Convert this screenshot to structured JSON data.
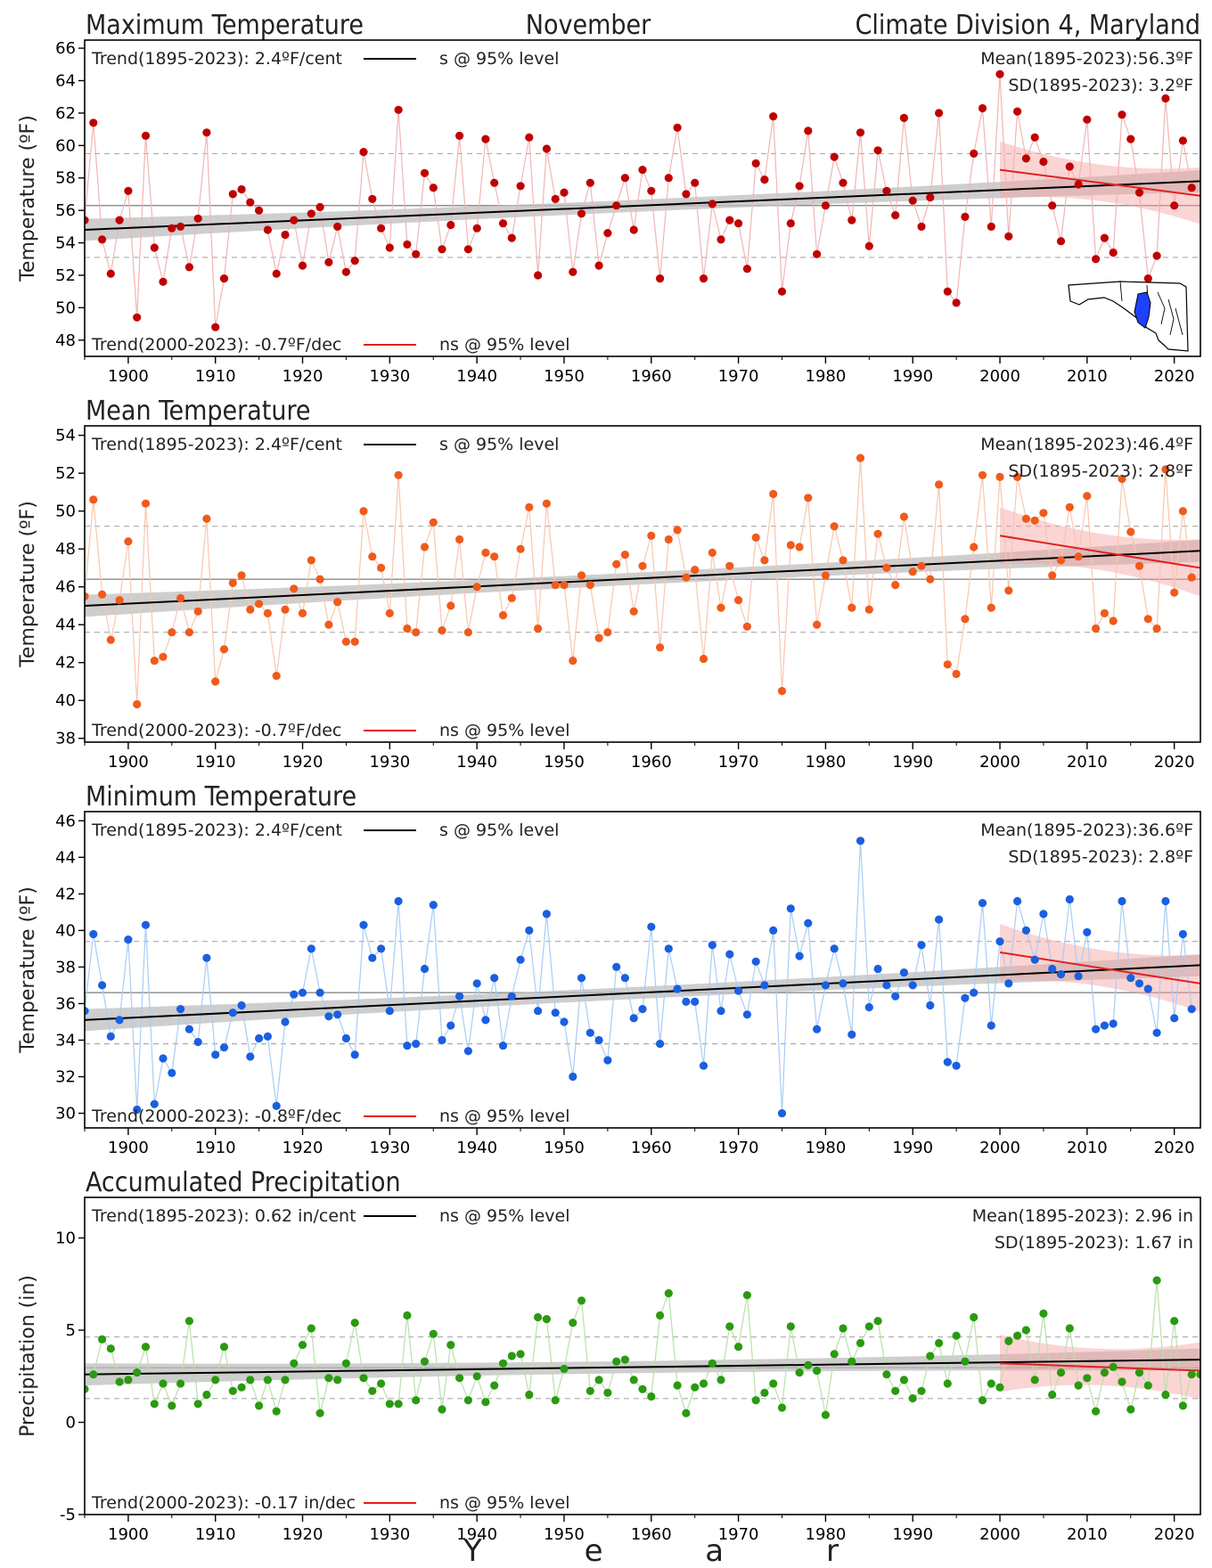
{
  "header": {
    "left_title": "Maximum Temperature",
    "center_title": "November",
    "right_title": "Climate Division 4, Maryland"
  },
  "x_axis_label": "Y e a r",
  "colors": {
    "max": "#c00000",
    "mean": "#f05a1a",
    "min": "#1a5fe0",
    "precip": "#2a9a10",
    "trend_long": "#000000",
    "trend_recent": "#e02020"
  },
  "map_icon": "maryland-division-map-icon",
  "chart_data": [
    {
      "id": "max",
      "type": "scatter",
      "title": "",
      "ylabel": "Temperature (ºF)",
      "xlim": [
        1895,
        2023
      ],
      "ylim": [
        47,
        66.5
      ],
      "yticks": [
        48,
        50,
        52,
        54,
        56,
        58,
        60,
        62,
        64,
        66
      ],
      "xticks": [
        1900,
        1910,
        1920,
        1930,
        1940,
        1950,
        1960,
        1970,
        1980,
        1990,
        2000,
        2010,
        2020
      ],
      "trend_long_label": "Trend(1895-2023):  2.4ºF/cent",
      "trend_long_sig": "s @ 95% level",
      "trend_recent_label": "Trend(2000-2023): -0.7ºF/dec",
      "trend_recent_sig": "ns @ 95% level",
      "mean_label": "Mean(1895-2023):56.3ºF",
      "sd_label": "SD(1895-2023): 3.2ºF",
      "mean": 56.3,
      "sd": 3.2,
      "trend_long": {
        "start": [
          1895,
          54.8
        ],
        "end": [
          2023,
          57.8
        ]
      },
      "trend_recent": {
        "start": [
          2000,
          58.5
        ],
        "end": [
          2023,
          56.9
        ]
      },
      "series": [
        {
          "x_start": 1895,
          "values": [
            55.4,
            61.4,
            54.2,
            52.1,
            55.4,
            57.2,
            49.4,
            60.6,
            53.7,
            51.6,
            54.9,
            55.0,
            52.5,
            55.5,
            60.8,
            48.8,
            51.8,
            57.0,
            57.3,
            56.5,
            56.0,
            54.8,
            52.1,
            54.5,
            55.4,
            52.6,
            55.8,
            56.2,
            52.8,
            55.0,
            52.2,
            52.9,
            59.6,
            56.7,
            54.9,
            53.7,
            62.2,
            53.9,
            53.3,
            58.3,
            57.4,
            53.6,
            55.1,
            60.6,
            53.6,
            54.9,
            60.4,
            57.7,
            55.2,
            54.3,
            57.5,
            60.5,
            52.0,
            59.8,
            56.7,
            57.1,
            52.2,
            55.8,
            57.7,
            52.6,
            54.6,
            56.3,
            58.0,
            54.8,
            58.5,
            57.2,
            51.8,
            58.0,
            61.1,
            57.0,
            57.7,
            51.8,
            56.4,
            54.2,
            55.4,
            55.2,
            52.4,
            58.9,
            57.9,
            61.8,
            51.0,
            55.2,
            57.5,
            60.9,
            53.3,
            56.3,
            59.3,
            57.7,
            55.4,
            60.8,
            53.8,
            59.7,
            57.2,
            55.7,
            61.7,
            56.6,
            55.0,
            56.8,
            62.0,
            51.0,
            50.3,
            55.6,
            59.5,
            62.3,
            55.0,
            64.4,
            54.4,
            62.1,
            59.2,
            60.5,
            59.0,
            56.3,
            54.1,
            58.7,
            57.6,
            61.6,
            53.0,
            54.3,
            53.4,
            61.9,
            60.4,
            57.1,
            51.8,
            53.2,
            62.9,
            56.3,
            60.3,
            57.4
          ]
        }
      ]
    },
    {
      "id": "mean",
      "type": "scatter",
      "title": "Mean Temperature",
      "ylabel": "Temperature (ºF)",
      "xlim": [
        1895,
        2023
      ],
      "ylim": [
        37.8,
        54.5
      ],
      "yticks": [
        38,
        40,
        42,
        44,
        46,
        48,
        50,
        52,
        54
      ],
      "xticks": [
        1900,
        1910,
        1920,
        1930,
        1940,
        1950,
        1960,
        1970,
        1980,
        1990,
        2000,
        2010,
        2020
      ],
      "trend_long_label": "Trend(1895-2023):  2.4ºF/cent",
      "trend_long_sig": "s @ 95% level",
      "trend_recent_label": "Trend(2000-2023): -0.7ºF/dec",
      "trend_recent_sig": "ns @ 95% level",
      "mean_label": "Mean(1895-2023):46.4ºF",
      "sd_label": "SD(1895-2023): 2.8ºF",
      "mean": 46.4,
      "sd": 2.8,
      "trend_long": {
        "start": [
          1895,
          45.0
        ],
        "end": [
          2023,
          47.9
        ]
      },
      "trend_recent": {
        "start": [
          2000,
          48.7
        ],
        "end": [
          2023,
          47.0
        ]
      },
      "series": [
        {
          "x_start": 1895,
          "values": [
            45.5,
            50.6,
            45.6,
            43.2,
            45.3,
            48.4,
            39.8,
            50.4,
            42.1,
            42.3,
            43.6,
            45.4,
            43.6,
            44.7,
            49.6,
            41.0,
            42.7,
            46.2,
            46.6,
            44.8,
            45.1,
            44.6,
            41.3,
            44.8,
            45.9,
            44.6,
            47.4,
            46.4,
            44.0,
            45.2,
            43.1,
            43.1,
            50.0,
            47.6,
            47.0,
            44.6,
            51.9,
            43.8,
            43.6,
            48.1,
            49.4,
            43.7,
            45.0,
            48.5,
            43.6,
            46.0,
            47.8,
            47.6,
            44.5,
            45.4,
            48.0,
            50.2,
            43.8,
            50.4,
            46.1,
            46.1,
            42.1,
            46.6,
            46.1,
            43.3,
            43.6,
            47.2,
            47.7,
            44.7,
            47.1,
            48.7,
            42.8,
            48.5,
            49.0,
            46.5,
            46.9,
            42.2,
            47.8,
            44.9,
            47.1,
            45.3,
            43.9,
            48.6,
            47.4,
            50.9,
            40.5,
            48.2,
            48.1,
            50.7,
            44.0,
            46.6,
            49.2,
            47.4,
            44.9,
            52.8,
            44.8,
            48.8,
            47.0,
            46.1,
            49.7,
            46.8,
            47.1,
            46.4,
            51.4,
            41.9,
            41.4,
            44.3,
            48.1,
            51.9,
            44.9,
            51.8,
            45.8,
            51.8,
            49.6,
            49.5,
            49.9,
            46.6,
            47.4,
            50.2,
            47.6,
            50.8,
            43.8,
            44.6,
            44.2,
            51.7,
            48.9,
            47.1,
            44.3,
            43.8,
            52.2,
            45.7,
            50.0,
            46.5
          ]
        }
      ]
    },
    {
      "id": "min",
      "type": "scatter",
      "title": "Minimum Temperature",
      "ylabel": "Temperature (ºF)",
      "xlim": [
        1895,
        2023
      ],
      "ylim": [
        29.2,
        46.5
      ],
      "yticks": [
        30,
        32,
        34,
        36,
        38,
        40,
        42,
        44,
        46
      ],
      "xticks": [
        1900,
        1910,
        1920,
        1930,
        1940,
        1950,
        1960,
        1970,
        1980,
        1990,
        2000,
        2010,
        2020
      ],
      "trend_long_label": "Trend(1895-2023):  2.4ºF/cent",
      "trend_long_sig": "s @ 95% level",
      "trend_recent_label": "Trend(2000-2023): -0.8ºF/dec",
      "trend_recent_sig": "ns @ 95% level",
      "mean_label": "Mean(1895-2023):36.6ºF",
      "sd_label": "SD(1895-2023): 2.8ºF",
      "mean": 36.6,
      "sd": 2.8,
      "trend_long": {
        "start": [
          1895,
          35.1
        ],
        "end": [
          2023,
          38.1
        ]
      },
      "trend_recent": {
        "start": [
          2000,
          38.8
        ],
        "end": [
          2023,
          37.1
        ]
      },
      "series": [
        {
          "x_start": 1895,
          "values": [
            35.6,
            39.8,
            37.0,
            34.2,
            35.1,
            39.5,
            30.2,
            40.3,
            30.5,
            33.0,
            32.2,
            35.7,
            34.6,
            33.9,
            38.5,
            33.2,
            33.6,
            35.5,
            35.9,
            33.1,
            34.1,
            34.2,
            30.4,
            35.0,
            36.5,
            36.6,
            39.0,
            36.6,
            35.3,
            35.4,
            34.1,
            33.2,
            40.3,
            38.5,
            39.0,
            35.6,
            41.6,
            33.7,
            33.8,
            37.9,
            41.4,
            34.0,
            34.8,
            36.4,
            33.4,
            37.1,
            35.1,
            37.4,
            33.7,
            36.4,
            38.4,
            40.0,
            35.6,
            40.9,
            35.5,
            35.0,
            32.0,
            37.4,
            34.4,
            34.0,
            32.9,
            38.0,
            37.4,
            35.2,
            35.7,
            40.2,
            33.8,
            39.0,
            36.8,
            36.1,
            36.1,
            32.6,
            39.2,
            35.6,
            38.7,
            36.7,
            35.4,
            38.3,
            37.0,
            40.0,
            30.0,
            41.2,
            38.6,
            40.4,
            34.6,
            37.0,
            39.0,
            37.1,
            34.3,
            44.9,
            35.8,
            37.9,
            37.0,
            36.4,
            37.7,
            37.0,
            39.2,
            35.9,
            40.6,
            32.8,
            32.6,
            36.3,
            36.6,
            41.5,
            34.8,
            39.4,
            37.1,
            41.6,
            40.0,
            38.4,
            40.9,
            37.9,
            37.6,
            41.7,
            37.5,
            39.9,
            34.6,
            34.8,
            34.9,
            41.6,
            37.4,
            37.1,
            36.8,
            34.4,
            41.6,
            35.2,
            39.8,
            35.7
          ]
        }
      ]
    },
    {
      "id": "precip",
      "type": "scatter",
      "title": "Accumulated Precipitation",
      "ylabel": "Precipitation (in)",
      "xlim": [
        1895,
        2023
      ],
      "ylim": [
        -5,
        12.2
      ],
      "yticks": [
        -5,
        0,
        5,
        10
      ],
      "xticks": [
        1900,
        1910,
        1920,
        1930,
        1940,
        1950,
        1960,
        1970,
        1980,
        1990,
        2000,
        2010,
        2020
      ],
      "trend_long_label": "Trend(1895-2023):  0.62 in/cent",
      "trend_long_sig": "ns @ 95% level",
      "trend_recent_label": "Trend(2000-2023): -0.17 in/dec",
      "trend_recent_sig": "ns @ 95% level",
      "mean_label": "Mean(1895-2023): 2.96 in",
      "sd_label": "SD(1895-2023): 1.67 in",
      "mean": 2.96,
      "sd": 1.67,
      "trend_long": {
        "start": [
          1895,
          2.6
        ],
        "end": [
          2023,
          3.4
        ]
      },
      "trend_recent": {
        "start": [
          2000,
          3.2
        ],
        "end": [
          2023,
          2.8
        ]
      },
      "series": [
        {
          "x_start": 1895,
          "values": [
            1.8,
            2.6,
            4.5,
            4.0,
            2.2,
            2.3,
            2.7,
            4.1,
            1.0,
            2.1,
            0.9,
            2.1,
            5.5,
            1.0,
            1.5,
            2.3,
            4.1,
            1.7,
            1.9,
            2.3,
            0.9,
            2.3,
            0.6,
            2.3,
            3.2,
            4.2,
            5.1,
            0.5,
            2.4,
            2.3,
            3.2,
            5.4,
            2.4,
            1.7,
            2.1,
            1.0,
            1.0,
            5.8,
            1.2,
            3.3,
            4.8,
            0.7,
            4.2,
            2.4,
            1.2,
            2.5,
            1.1,
            2.0,
            3.2,
            3.6,
            3.7,
            1.5,
            5.7,
            5.6,
            1.2,
            2.9,
            5.4,
            6.6,
            1.7,
            2.3,
            1.6,
            3.3,
            3.4,
            2.3,
            1.8,
            1.4,
            5.8,
            7.0,
            2.0,
            0.5,
            1.9,
            2.1,
            3.2,
            2.3,
            5.2,
            4.1,
            6.9,
            1.2,
            1.6,
            2.1,
            0.8,
            5.2,
            2.7,
            3.1,
            2.8,
            0.4,
            3.7,
            5.1,
            3.3,
            4.3,
            5.2,
            5.5,
            2.6,
            1.7,
            2.3,
            1.3,
            1.7,
            3.6,
            4.3,
            2.1,
            4.7,
            3.3,
            5.7,
            1.2,
            2.1,
            1.9,
            4.4,
            4.7,
            5.0,
            2.3,
            5.9,
            1.5,
            2.7,
            5.1,
            2.0,
            2.4,
            0.6,
            2.7,
            3.0,
            2.2,
            0.7,
            2.7,
            2.0,
            7.7,
            1.5,
            5.5,
            0.9,
            2.6,
            2.6
          ]
        }
      ]
    }
  ]
}
